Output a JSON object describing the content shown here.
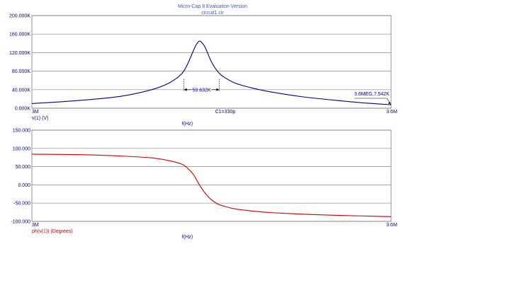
{
  "header": {
    "title": "Micro-Cap 8 Evaluation Version",
    "subtitle": "circuit1.cir",
    "title_color": "#3c5ab4"
  },
  "chart_data": [
    {
      "type": "line",
      "xlabel": "f(Hz)",
      "ylabel": "v(1) (V)",
      "xlim": [
        3000000,
        3600000
      ],
      "ylim": [
        0,
        200000
      ],
      "x_tick_labels": [
        "3M",
        "3.6M"
      ],
      "y_ticks": [
        0,
        40000,
        80000,
        120000,
        160000,
        200000
      ],
      "y_tick_labels": [
        "0.000K",
        "40.000K",
        "80.000K",
        "120.000K",
        "160.000K",
        "200.000K"
      ],
      "grid": true,
      "series": [
        {
          "name": "v(1) (V)",
          "color": "#00008b",
          "x": [
            3000000,
            3050000,
            3100000,
            3150000,
            3200000,
            3230000,
            3250000,
            3260000,
            3270000,
            3275000,
            3280000,
            3285000,
            3290000,
            3300000,
            3310000,
            3320000,
            3340000,
            3370000,
            3400000,
            3450000,
            3500000,
            3550000,
            3600000
          ],
          "y": [
            10000,
            14000,
            19000,
            26000,
            40000,
            55000,
            74000,
            95000,
            125000,
            138000,
            145000,
            140000,
            130000,
            100000,
            80000,
            68000,
            54000,
            43000,
            35000,
            25000,
            18000,
            12000,
            7542
          ]
        }
      ],
      "annotations": [
        {
          "text": "59.632K",
          "kind": "bandwidth",
          "x_from": 3254000,
          "x_to": 3313000,
          "y": 40000
        },
        {
          "text": "C1=330p",
          "kind": "parameter"
        },
        {
          "text": "3.6MEG,7.542K",
          "kind": "point",
          "x": 3600000,
          "y": 7542
        }
      ]
    },
    {
      "type": "line",
      "xlabel": "f(Hz)",
      "ylabel": "ph(v(1)) (Degrees)",
      "xlim": [
        3000000,
        3600000
      ],
      "ylim": [
        -100,
        150
      ],
      "x_tick_labels": [
        "3M",
        "3.6M"
      ],
      "y_ticks": [
        -100,
        -50,
        0,
        50,
        100,
        150
      ],
      "y_tick_labels": [
        "-100.000",
        "-50.000",
        "0.000",
        "50.000",
        "100.000",
        "150.000"
      ],
      "grid": true,
      "series": [
        {
          "name": "ph(v(1)) (Degrees)",
          "color": "#cc0000",
          "x": [
            3000000,
            3050000,
            3100000,
            3150000,
            3200000,
            3230000,
            3250000,
            3260000,
            3270000,
            3280000,
            3290000,
            3300000,
            3310000,
            3320000,
            3340000,
            3370000,
            3400000,
            3450000,
            3500000,
            3550000,
            3600000
          ],
          "y": [
            84,
            83.5,
            82,
            79,
            74,
            66,
            57,
            46,
            28,
            0,
            -24,
            -41,
            -52,
            -58,
            -66,
            -72,
            -76,
            -80,
            -83,
            -85,
            -87
          ]
        }
      ]
    }
  ]
}
